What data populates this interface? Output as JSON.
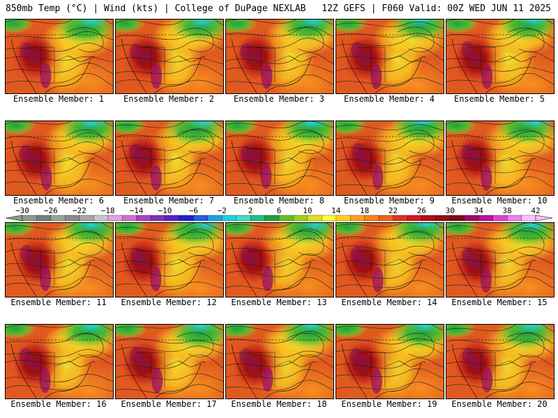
{
  "header": {
    "left": "850mb Temp (°C) | Wind (kts) | College of DuPage NEXLAB",
    "right": "12Z GEFS | F060 Valid: 00Z WED JUN 11 2025"
  },
  "panels": [
    {
      "label": "Ensemble Member: 1"
    },
    {
      "label": "Ensemble Member: 2"
    },
    {
      "label": "Ensemble Member: 3"
    },
    {
      "label": "Ensemble Member: 4"
    },
    {
      "label": "Ensemble Member: 5"
    },
    {
      "label": "Ensemble Member: 6"
    },
    {
      "label": "Ensemble Member: 7"
    },
    {
      "label": "Ensemble Member: 8"
    },
    {
      "label": "Ensemble Member: 9"
    },
    {
      "label": "Ensemble Member: 10"
    },
    {
      "label": "Ensemble Member: 11"
    },
    {
      "label": "Ensemble Member: 12"
    },
    {
      "label": "Ensemble Member: 13"
    },
    {
      "label": "Ensemble Member: 14"
    },
    {
      "label": "Ensemble Member: 15"
    },
    {
      "label": "Ensemble Member: 16"
    },
    {
      "label": "Ensemble Member: 17"
    },
    {
      "label": "Ensemble Member: 18"
    },
    {
      "label": "Ensemble Member: 19"
    },
    {
      "label": "Ensemble Member: 20"
    }
  ],
  "colorbar": {
    "tick_labels": [
      "−30",
      "−26",
      "−22",
      "−18",
      "−14",
      "−10",
      "−6",
      "−2",
      "2",
      "6",
      "10",
      "14",
      "18",
      "22",
      "26",
      "30",
      "34",
      "38",
      "42"
    ],
    "colors": [
      "#8c9c8c",
      "#70807a",
      "#9aa49a",
      "#8a8a8a",
      "#a6a6a6",
      "#c8c8c8",
      "#e0a0e0",
      "#d070d0",
      "#b040c0",
      "#8030b0",
      "#6020c0",
      "#2020d0",
      "#2060e0",
      "#20a0e0",
      "#20d0e0",
      "#40e0c0",
      "#20c080",
      "#20a040",
      "#60c020",
      "#a0d020",
      "#e0e020",
      "#ffff40",
      "#ffd020",
      "#ffa020",
      "#ff8020",
      "#f06020",
      "#e03020",
      "#d01818",
      "#b01010",
      "#901010",
      "#800818",
      "#a00860",
      "#c010a0",
      "#e040d0",
      "#f080f0",
      "#ffc0ff"
    ]
  }
}
